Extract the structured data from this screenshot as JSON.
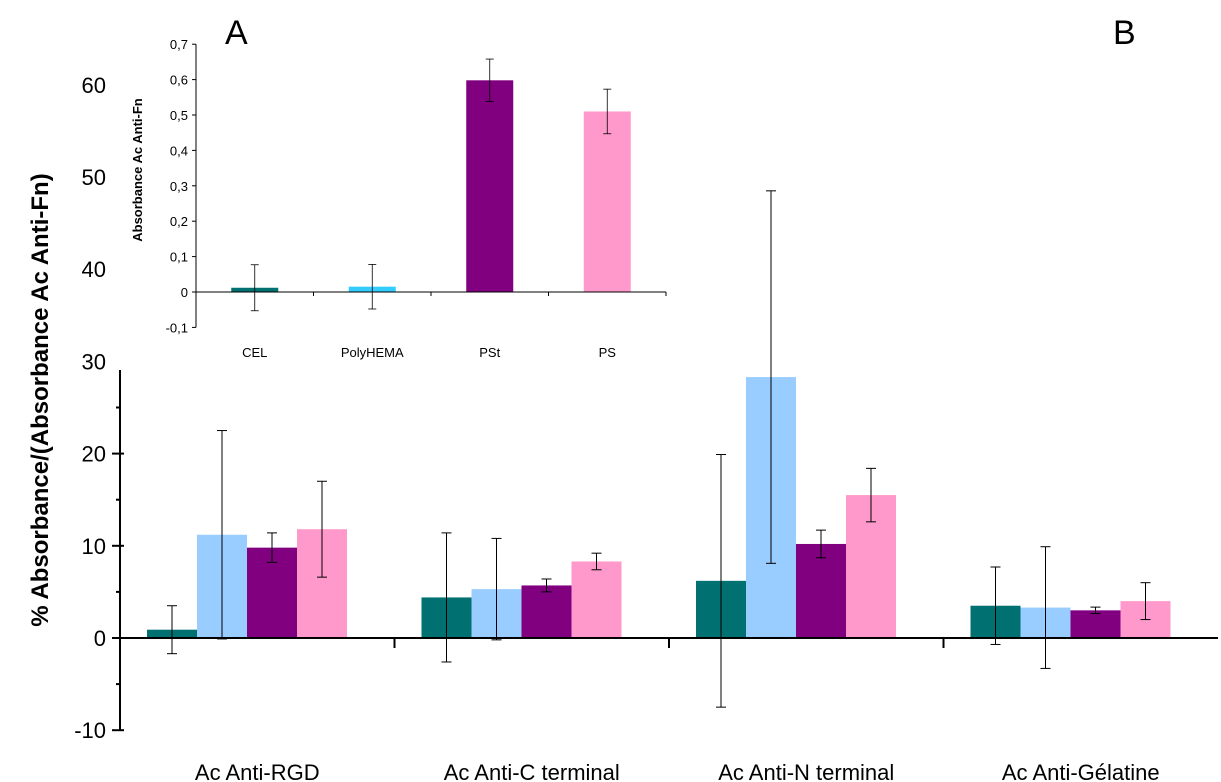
{
  "panel_labels": {
    "a": "A",
    "b": "B"
  },
  "chart_data": [
    {
      "type": "bar",
      "title": "",
      "xlabel": "",
      "ylabel": "% Absorbance/(Absorbance Ac Anti-Fn)",
      "ylim": [
        -10,
        60
      ],
      "yticks": [
        -10,
        0,
        10,
        20,
        30,
        40,
        50,
        60
      ],
      "grid": false,
      "legend": "none",
      "categories": [
        "Ac Anti-RGD",
        "Ac Anti-C terminal",
        "Ac Anti-N terminal",
        "Ac Anti-Gélatine"
      ],
      "series": [
        {
          "color": "#007070",
          "values": [
            0.9,
            4.4,
            6.2,
            3.5
          ],
          "errors": [
            2.6,
            7.0,
            13.7,
            4.2
          ]
        },
        {
          "color": "#99ccff",
          "values": [
            11.2,
            5.3,
            28.3,
            3.3
          ],
          "errors": [
            11.3,
            5.5,
            20.2,
            6.6
          ]
        },
        {
          "color": "#800080",
          "values": [
            9.8,
            5.7,
            10.2,
            3.0
          ],
          "errors": [
            1.6,
            0.7,
            1.5,
            0.35
          ]
        },
        {
          "color": "#ff99cc",
          "values": [
            11.8,
            8.3,
            15.5,
            4.0
          ],
          "errors": [
            5.2,
            0.9,
            2.9,
            2.0
          ]
        }
      ]
    },
    {
      "type": "bar",
      "title": "",
      "xlabel": "",
      "ylabel": "Absorbance Ac Anti-Fn",
      "ylim": [
        -0.1,
        0.7
      ],
      "yticks": [
        "-0,1",
        "0",
        "0,1",
        "0,2",
        "0,3",
        "0,4",
        "0,5",
        "0,6",
        "0,7"
      ],
      "yticks_values": [
        -0.1,
        0,
        0.1,
        0.2,
        0.3,
        0.4,
        0.5,
        0.6,
        0.7
      ],
      "grid": false,
      "legend": "none",
      "categories": [
        "CEL",
        "PolyHEMA",
        "PSt",
        "PS"
      ],
      "values": [
        0.012,
        0.015,
        0.598,
        0.51
      ],
      "errors": [
        0.065,
        0.063,
        0.06,
        0.063
      ],
      "colors": [
        "#007070",
        "#33ccff",
        "#800080",
        "#ff99cc"
      ]
    }
  ]
}
